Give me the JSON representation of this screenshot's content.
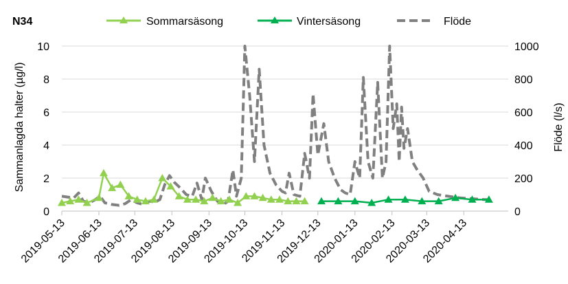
{
  "chart_data": {
    "type": "line",
    "title": "N34",
    "ylabel": "Sammanlagda halter (µg/l)",
    "y2label": "Flöde (l/s)",
    "ylim": [
      0,
      10
    ],
    "y2lim": [
      0,
      1000
    ],
    "yticks": [
      "0",
      "2",
      "4",
      "6",
      "8",
      "10"
    ],
    "y2ticks": [
      "0",
      "200",
      "400",
      "600",
      "800",
      "1000"
    ],
    "grid": true,
    "legend_position": "top",
    "x_tick_labels": [
      "2019-05-13",
      "2019-06-13",
      "2019-07-13",
      "2019-08-13",
      "2019-09-13",
      "2019-10-13",
      "2019-11-13",
      "2019-12-13",
      "2020-01-13",
      "2020-02-13",
      "2020-03-13",
      "2020-04-13"
    ],
    "series": [
      {
        "name": "Sommarsäsong",
        "axis": "left",
        "color": "#92d050",
        "marker": "triangle",
        "points": [
          [
            "2019-05-13",
            0.5
          ],
          [
            "2019-05-20",
            0.6
          ],
          [
            "2019-05-27",
            0.7
          ],
          [
            "2019-06-03",
            0.5
          ],
          [
            "2019-06-13",
            0.8
          ],
          [
            "2019-06-17",
            2.3
          ],
          [
            "2019-06-24",
            1.4
          ],
          [
            "2019-07-01",
            1.6
          ],
          [
            "2019-07-08",
            0.9
          ],
          [
            "2019-07-15",
            0.7
          ],
          [
            "2019-07-22",
            0.6
          ],
          [
            "2019-07-29",
            0.7
          ],
          [
            "2019-08-05",
            2.0
          ],
          [
            "2019-08-12",
            1.5
          ],
          [
            "2019-08-19",
            0.9
          ],
          [
            "2019-08-26",
            0.7
          ],
          [
            "2019-09-02",
            0.7
          ],
          [
            "2019-09-09",
            0.6
          ],
          [
            "2019-09-16",
            0.8
          ],
          [
            "2019-09-23",
            0.6
          ],
          [
            "2019-09-30",
            0.7
          ],
          [
            "2019-10-07",
            0.5
          ],
          [
            "2019-10-14",
            0.9
          ],
          [
            "2019-10-21",
            0.9
          ],
          [
            "2019-10-28",
            0.8
          ],
          [
            "2019-11-04",
            0.7
          ],
          [
            "2019-11-11",
            0.7
          ],
          [
            "2019-11-18",
            0.6
          ],
          [
            "2019-11-25",
            0.6
          ],
          [
            "2019-12-02",
            0.6
          ]
        ]
      },
      {
        "name": "Vintersäsong",
        "axis": "left",
        "color": "#00b050",
        "marker": "triangle",
        "points": [
          [
            "2019-12-16",
            0.6
          ],
          [
            "2019-12-30",
            0.6
          ],
          [
            "2020-01-13",
            0.6
          ],
          [
            "2020-01-27",
            0.5
          ],
          [
            "2020-02-10",
            0.7
          ],
          [
            "2020-02-24",
            0.7
          ],
          [
            "2020-03-09",
            0.6
          ],
          [
            "2020-03-23",
            0.6
          ],
          [
            "2020-04-06",
            0.8
          ],
          [
            "2020-04-20",
            0.7
          ],
          [
            "2020-05-04",
            0.7
          ]
        ]
      },
      {
        "name": "Flöde",
        "axis": "right",
        "color": "#808080",
        "dashed": true,
        "points": [
          [
            "2019-05-13",
            90
          ],
          [
            "2019-05-18",
            85
          ],
          [
            "2019-05-23",
            80
          ],
          [
            "2019-05-27",
            110
          ],
          [
            "2019-05-31",
            60
          ],
          [
            "2019-06-05",
            50
          ],
          [
            "2019-06-10",
            70
          ],
          [
            "2019-06-14",
            90
          ],
          [
            "2019-06-18",
            50
          ],
          [
            "2019-06-24",
            40
          ],
          [
            "2019-06-30",
            35
          ],
          [
            "2019-07-05",
            45
          ],
          [
            "2019-07-10",
            70
          ],
          [
            "2019-07-15",
            50
          ],
          [
            "2019-07-20",
            40
          ],
          [
            "2019-07-25",
            60
          ],
          [
            "2019-07-30",
            55
          ],
          [
            "2019-08-03",
            70
          ],
          [
            "2019-08-07",
            160
          ],
          [
            "2019-08-11",
            215
          ],
          [
            "2019-08-15",
            175
          ],
          [
            "2019-08-20",
            140
          ],
          [
            "2019-08-25",
            100
          ],
          [
            "2019-08-30",
            90
          ],
          [
            "2019-09-03",
            170
          ],
          [
            "2019-09-07",
            70
          ],
          [
            "2019-09-10",
            200
          ],
          [
            "2019-09-15",
            120
          ],
          [
            "2019-09-20",
            60
          ],
          [
            "2019-09-25",
            40
          ],
          [
            "2019-09-29",
            60
          ],
          [
            "2019-10-03",
            250
          ],
          [
            "2019-10-06",
            90
          ],
          [
            "2019-10-10",
            200
          ],
          [
            "2019-10-13",
            1000
          ],
          [
            "2019-10-17",
            700
          ],
          [
            "2019-10-21",
            300
          ],
          [
            "2019-10-25",
            860
          ],
          [
            "2019-10-29",
            400
          ],
          [
            "2019-11-03",
            230
          ],
          [
            "2019-11-08",
            160
          ],
          [
            "2019-11-13",
            120
          ],
          [
            "2019-11-16",
            110
          ],
          [
            "2019-11-19",
            230
          ],
          [
            "2019-11-23",
            100
          ],
          [
            "2019-11-28",
            90
          ],
          [
            "2019-12-02",
            350
          ],
          [
            "2019-12-06",
            200
          ],
          [
            "2019-12-09",
            710
          ],
          [
            "2019-12-13",
            340
          ],
          [
            "2019-12-18",
            530
          ],
          [
            "2019-12-22",
            300
          ],
          [
            "2019-12-27",
            200
          ],
          [
            "2020-01-01",
            130
          ],
          [
            "2020-01-05",
            110
          ],
          [
            "2020-01-09",
            100
          ],
          [
            "2020-01-13",
            300
          ],
          [
            "2020-01-17",
            200
          ],
          [
            "2020-01-20",
            810
          ],
          [
            "2020-01-24",
            300
          ],
          [
            "2020-01-28",
            200
          ],
          [
            "2020-02-01",
            780
          ],
          [
            "2020-02-05",
            200
          ],
          [
            "2020-02-08",
            300
          ],
          [
            "2020-02-11",
            1000
          ],
          [
            "2020-02-14",
            500
          ],
          [
            "2020-02-17",
            650
          ],
          [
            "2020-02-19",
            300
          ],
          [
            "2020-02-21",
            630
          ],
          [
            "2020-02-23",
            380
          ],
          [
            "2020-02-26",
            500
          ],
          [
            "2020-03-01",
            300
          ],
          [
            "2020-03-05",
            250
          ],
          [
            "2020-03-10",
            200
          ],
          [
            "2020-03-15",
            120
          ],
          [
            "2020-03-22",
            100
          ],
          [
            "2020-03-31",
            90
          ],
          [
            "2020-04-10",
            80
          ],
          [
            "2020-04-20",
            75
          ],
          [
            "2020-04-30",
            70
          ],
          [
            "2020-05-06",
            70
          ]
        ]
      }
    ]
  }
}
